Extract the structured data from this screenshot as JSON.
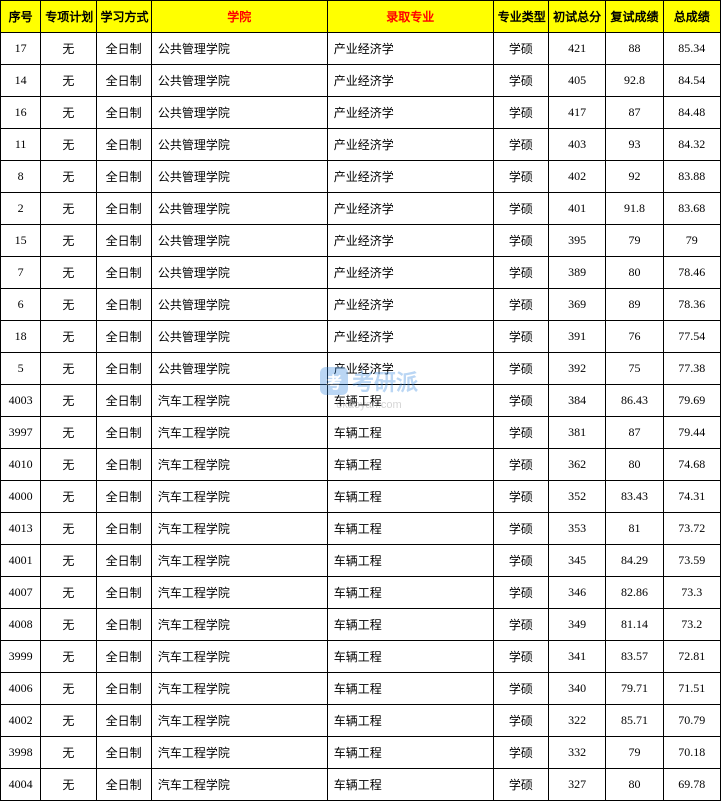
{
  "header": {
    "seq": "序号",
    "plan": "专项计划",
    "study": "学习方式",
    "college": "学院",
    "major": "录取专业",
    "type": "专业类型",
    "prelim": "初试总分",
    "second": "复试成绩",
    "total": "总成绩"
  },
  "watermark": {
    "icon": "考",
    "text": "考研派",
    "url": "okaoyan.com"
  },
  "rows": [
    {
      "seq": "17",
      "plan": "无",
      "study": "全日制",
      "college": "公共管理学院",
      "major": "产业经济学",
      "type": "学硕",
      "prelim": "421",
      "second": "88",
      "total": "85.34"
    },
    {
      "seq": "14",
      "plan": "无",
      "study": "全日制",
      "college": "公共管理学院",
      "major": "产业经济学",
      "type": "学硕",
      "prelim": "405",
      "second": "92.8",
      "total": "84.54"
    },
    {
      "seq": "16",
      "plan": "无",
      "study": "全日制",
      "college": "公共管理学院",
      "major": "产业经济学",
      "type": "学硕",
      "prelim": "417",
      "second": "87",
      "total": "84.48"
    },
    {
      "seq": "11",
      "plan": "无",
      "study": "全日制",
      "college": "公共管理学院",
      "major": "产业经济学",
      "type": "学硕",
      "prelim": "403",
      "second": "93",
      "total": "84.32"
    },
    {
      "seq": "8",
      "plan": "无",
      "study": "全日制",
      "college": "公共管理学院",
      "major": "产业经济学",
      "type": "学硕",
      "prelim": "402",
      "second": "92",
      "total": "83.88"
    },
    {
      "seq": "2",
      "plan": "无",
      "study": "全日制",
      "college": "公共管理学院",
      "major": "产业经济学",
      "type": "学硕",
      "prelim": "401",
      "second": "91.8",
      "total": "83.68"
    },
    {
      "seq": "15",
      "plan": "无",
      "study": "全日制",
      "college": "公共管理学院",
      "major": "产业经济学",
      "type": "学硕",
      "prelim": "395",
      "second": "79",
      "total": "79"
    },
    {
      "seq": "7",
      "plan": "无",
      "study": "全日制",
      "college": "公共管理学院",
      "major": "产业经济学",
      "type": "学硕",
      "prelim": "389",
      "second": "80",
      "total": "78.46"
    },
    {
      "seq": "6",
      "plan": "无",
      "study": "全日制",
      "college": "公共管理学院",
      "major": "产业经济学",
      "type": "学硕",
      "prelim": "369",
      "second": "89",
      "total": "78.36"
    },
    {
      "seq": "18",
      "plan": "无",
      "study": "全日制",
      "college": "公共管理学院",
      "major": "产业经济学",
      "type": "学硕",
      "prelim": "391",
      "second": "76",
      "total": "77.54"
    },
    {
      "seq": "5",
      "plan": "无",
      "study": "全日制",
      "college": "公共管理学院",
      "major": "产业经济学",
      "type": "学硕",
      "prelim": "392",
      "second": "75",
      "total": "77.38"
    },
    {
      "seq": "4003",
      "plan": "无",
      "study": "全日制",
      "college": "汽车工程学院",
      "major": "车辆工程",
      "type": "学硕",
      "prelim": "384",
      "second": "86.43",
      "total": "79.69"
    },
    {
      "seq": "3997",
      "plan": "无",
      "study": "全日制",
      "college": "汽车工程学院",
      "major": "车辆工程",
      "type": "学硕",
      "prelim": "381",
      "second": "87",
      "total": "79.44"
    },
    {
      "seq": "4010",
      "plan": "无",
      "study": "全日制",
      "college": "汽车工程学院",
      "major": "车辆工程",
      "type": "学硕",
      "prelim": "362",
      "second": "80",
      "total": "74.68"
    },
    {
      "seq": "4000",
      "plan": "无",
      "study": "全日制",
      "college": "汽车工程学院",
      "major": "车辆工程",
      "type": "学硕",
      "prelim": "352",
      "second": "83.43",
      "total": "74.31"
    },
    {
      "seq": "4013",
      "plan": "无",
      "study": "全日制",
      "college": "汽车工程学院",
      "major": "车辆工程",
      "type": "学硕",
      "prelim": "353",
      "second": "81",
      "total": "73.72"
    },
    {
      "seq": "4001",
      "plan": "无",
      "study": "全日制",
      "college": "汽车工程学院",
      "major": "车辆工程",
      "type": "学硕",
      "prelim": "345",
      "second": "84.29",
      "total": "73.59"
    },
    {
      "seq": "4007",
      "plan": "无",
      "study": "全日制",
      "college": "汽车工程学院",
      "major": "车辆工程",
      "type": "学硕",
      "prelim": "346",
      "second": "82.86",
      "total": "73.3"
    },
    {
      "seq": "4008",
      "plan": "无",
      "study": "全日制",
      "college": "汽车工程学院",
      "major": "车辆工程",
      "type": "学硕",
      "prelim": "349",
      "second": "81.14",
      "total": "73.2"
    },
    {
      "seq": "3999",
      "plan": "无",
      "study": "全日制",
      "college": "汽车工程学院",
      "major": "车辆工程",
      "type": "学硕",
      "prelim": "341",
      "second": "83.57",
      "total": "72.81"
    },
    {
      "seq": "4006",
      "plan": "无",
      "study": "全日制",
      "college": "汽车工程学院",
      "major": "车辆工程",
      "type": "学硕",
      "prelim": "340",
      "second": "79.71",
      "total": "71.51"
    },
    {
      "seq": "4002",
      "plan": "无",
      "study": "全日制",
      "college": "汽车工程学院",
      "major": "车辆工程",
      "type": "学硕",
      "prelim": "322",
      "second": "85.71",
      "total": "70.79"
    },
    {
      "seq": "3998",
      "plan": "无",
      "study": "全日制",
      "college": "汽车工程学院",
      "major": "车辆工程",
      "type": "学硕",
      "prelim": "332",
      "second": "79",
      "total": "70.18"
    },
    {
      "seq": "4004",
      "plan": "无",
      "study": "全日制",
      "college": "汽车工程学院",
      "major": "车辆工程",
      "type": "学硕",
      "prelim": "327",
      "second": "80",
      "total": "69.78"
    }
  ]
}
